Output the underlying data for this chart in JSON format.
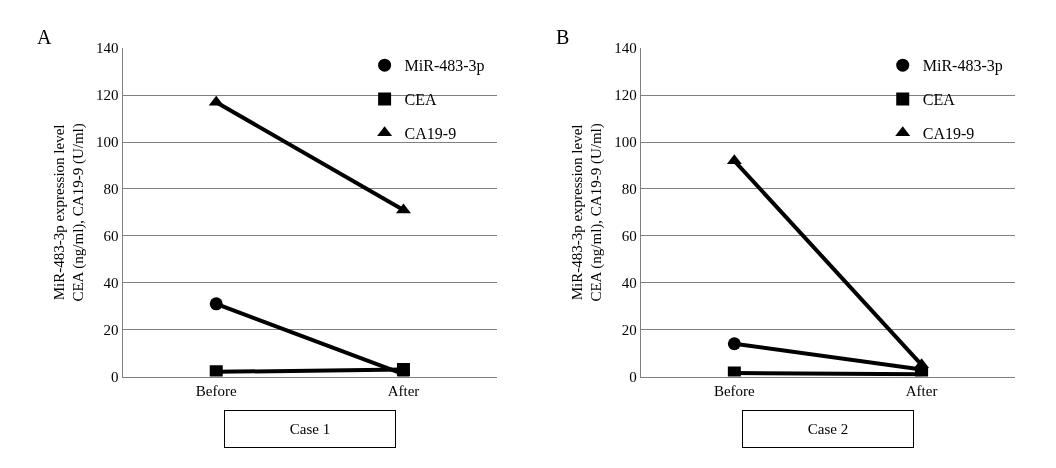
{
  "chart_data": [
    {
      "type": "line",
      "title": "A",
      "xlabel": "Case 1",
      "ylabel": "MiR-483-3p expression level\nCEA (ng/ml), CA19-9 (U/ml)",
      "categories": [
        "Before",
        "After"
      ],
      "series": [
        {
          "name": "MiR-483-3p",
          "color": "#000000",
          "marker": "circle",
          "values": [
            31,
            1
          ]
        },
        {
          "name": "CEA",
          "color": "#000000",
          "marker": "square",
          "values": [
            2,
            3
          ]
        },
        {
          "name": "CA19-9",
          "color": "#000000",
          "marker": "triangle",
          "values": [
            117,
            71
          ]
        }
      ],
      "ylim": [
        0,
        140
      ],
      "yticks": [
        0,
        20,
        40,
        60,
        80,
        100,
        120,
        140
      ],
      "grid": "y",
      "legend": "top right",
      "line_style": "solid"
    },
    {
      "type": "line",
      "title": "B",
      "xlabel": "Case 2",
      "ylabel": "MiR-483-3p expression level\nCEA (ng/ml), CA19-9 (U/ml)",
      "categories": [
        "Before",
        "After"
      ],
      "series": [
        {
          "name": "MiR-483-3p",
          "color": "#000000",
          "marker": "circle",
          "values": [
            14,
            3
          ]
        },
        {
          "name": "CEA",
          "color": "#000000",
          "marker": "square",
          "values": [
            1.5,
            1
          ]
        },
        {
          "name": "CA19-9",
          "color": "#000000",
          "marker": "triangle",
          "values": [
            92,
            5
          ]
        }
      ],
      "ylim": [
        0,
        140
      ],
      "yticks": [
        0,
        20,
        40,
        60,
        80,
        100,
        120,
        140
      ],
      "grid": "y",
      "legend": "top right",
      "line_style": "solid"
    }
  ]
}
